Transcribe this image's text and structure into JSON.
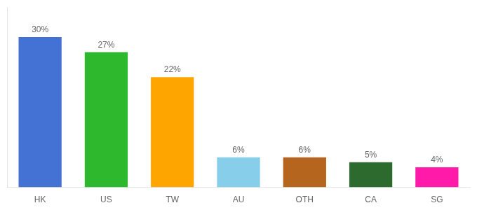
{
  "chart_data": {
    "type": "bar",
    "categories": [
      "HK",
      "US",
      "TW",
      "AU",
      "OTH",
      "CA",
      "SG"
    ],
    "values": [
      30,
      27,
      22,
      6,
      6,
      5,
      4
    ],
    "value_labels": [
      "30%",
      "27%",
      "22%",
      "6%",
      "6%",
      "5%",
      "4%"
    ],
    "data_labels": true,
    "colors": [
      "#4472d4",
      "#2db82d",
      "#ffa500",
      "#87ceeb",
      "#b5651d",
      "#2d6a2d",
      "#ff1aaa"
    ],
    "ylim": [
      0,
      36
    ],
    "grid": false,
    "tick_labels": "x"
  }
}
